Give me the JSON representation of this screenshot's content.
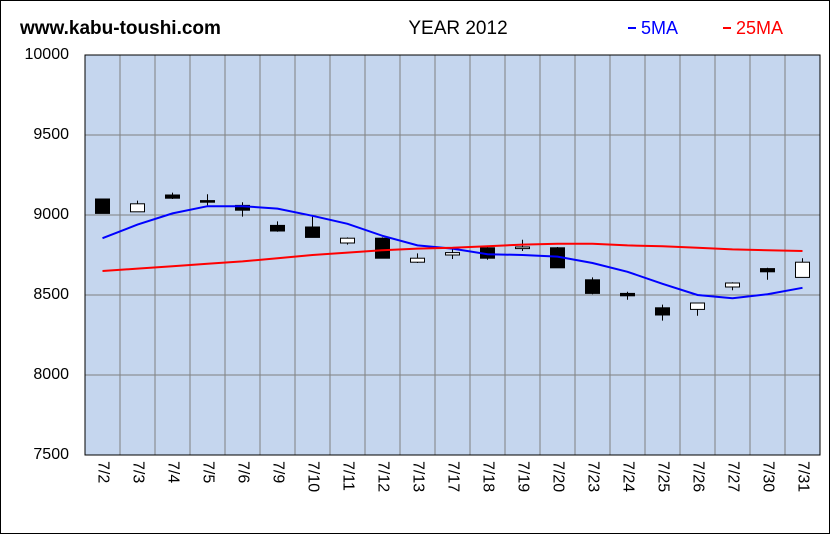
{
  "chart_data": {
    "type": "candlestick",
    "site": "www.kabu-toushi.com",
    "title": "YEAR 2012",
    "categories": [
      "7/2",
      "7/3",
      "7/4",
      "7/5",
      "7/6",
      "7/9",
      "7/10",
      "7/11",
      "7/12",
      "7/13",
      "7/17",
      "7/18",
      "7/19",
      "7/20",
      "7/23",
      "7/24",
      "7/25",
      "7/26",
      "7/27",
      "7/30",
      "7/31"
    ],
    "open": [
      9100,
      9020,
      9125,
      9090,
      9060,
      8935,
      8925,
      8825,
      8855,
      8705,
      8750,
      8795,
      8790,
      8795,
      8595,
      8510,
      8420,
      8410,
      8550,
      8665,
      8610
    ],
    "high": [
      9100,
      9090,
      9140,
      9130,
      9080,
      8960,
      8990,
      8860,
      8860,
      8760,
      8795,
      8800,
      8845,
      8800,
      8610,
      8520,
      8440,
      8450,
      8580,
      8670,
      8730
    ],
    "low": [
      9010,
      9020,
      9100,
      9060,
      8990,
      8895,
      8860,
      8815,
      8730,
      8700,
      8725,
      8720,
      8775,
      8670,
      8505,
      8470,
      8340,
      8370,
      8530,
      8595,
      8610
    ],
    "close": [
      9010,
      9070,
      9105,
      9080,
      9030,
      8900,
      8860,
      8855,
      8730,
      8730,
      8765,
      8730,
      8800,
      8670,
      8510,
      8495,
      8375,
      8450,
      8575,
      8645,
      8705
    ],
    "series": [
      {
        "name": "5MA",
        "color": "#0000ff",
        "values": [
          8855,
          8940,
          9010,
          9055,
          9055,
          9040,
          8995,
          8945,
          8870,
          8810,
          8790,
          8755,
          8750,
          8740,
          8700,
          8645,
          8570,
          8500,
          8480,
          8505,
          8545
        ]
      },
      {
        "name": "25MA",
        "color": "#ff0000",
        "values": [
          8650,
          8665,
          8680,
          8695,
          8710,
          8730,
          8750,
          8765,
          8780,
          8790,
          8795,
          8805,
          8815,
          8820,
          8820,
          8810,
          8805,
          8795,
          8785,
          8780,
          8775
        ]
      }
    ],
    "ylim": [
      7500,
      10000
    ],
    "yticks": [
      7500,
      8000,
      8500,
      9000,
      9500,
      10000
    ],
    "grid": true,
    "up_color": "#ffffff",
    "down_color": "#000000",
    "plot_background": "#c5d6ee"
  }
}
